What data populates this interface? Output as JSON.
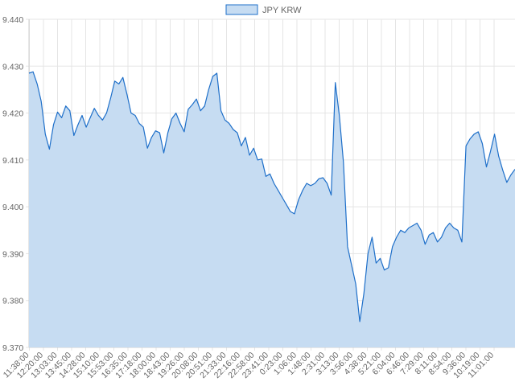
{
  "chart_data": {
    "type": "area",
    "legend": {
      "label": "JPY KRW",
      "position": "top-center"
    },
    "title": "",
    "xlabel": "",
    "ylabel": "",
    "ylim": [
      9.37,
      9.44
    ],
    "y_ticks": [
      "9.440",
      "9.430",
      "9.420",
      "9.410",
      "9.400",
      "9.390",
      "9.380",
      "9.370"
    ],
    "x_ticks": [
      "11:38:00",
      "12:20:00",
      "13:03:00",
      "13:45:00",
      "14:28:00",
      "15:10:00",
      "15:53:00",
      "16:35:00",
      "17:18:00",
      "18:00:00",
      "18:43:00",
      "19:26:00",
      "20:08:00",
      "20:51:00",
      "21:33:00",
      "22:16:00",
      "22:58:00",
      "23:41:00",
      "0:23:00",
      "1:06:00",
      "1:48:00",
      "2:31:00",
      "3:13:00",
      "3:56:00",
      "4:38:00",
      "5:21:00",
      "6:04:00",
      "6:46:00",
      "7:29:00",
      "8:11:00",
      "8:54:00",
      "9:36:00",
      "10:19:00",
      "11:01:00"
    ],
    "grid": true,
    "colors": {
      "line": "#1e6fc9",
      "fill": "#c6dcf2",
      "grid": "#e5e5e5"
    },
    "series": [
      {
        "name": "JPY KRW",
        "values": [
          9.4285,
          9.4288,
          9.4262,
          9.4225,
          9.4155,
          9.4123,
          9.4175,
          9.4202,
          9.419,
          9.4215,
          9.4205,
          9.4152,
          9.4175,
          9.4195,
          9.417,
          9.419,
          9.421,
          9.4195,
          9.4185,
          9.42,
          9.4232,
          9.4268,
          9.4262,
          9.4276,
          9.424,
          9.42,
          9.4195,
          9.4178,
          9.417,
          9.4125,
          9.4148,
          9.4162,
          9.4158,
          9.4115,
          9.4158,
          9.4188,
          9.42,
          9.4178,
          9.416,
          9.4208,
          9.4218,
          9.423,
          9.4205,
          9.4215,
          9.425,
          9.4278,
          9.4285,
          9.4205,
          9.4185,
          9.4178,
          9.4165,
          9.4158,
          9.413,
          9.4148,
          9.411,
          9.4125,
          9.41,
          9.4102,
          9.4065,
          9.407,
          9.405,
          9.4035,
          9.402,
          9.4005,
          9.399,
          9.3985,
          9.4015,
          9.4035,
          9.405,
          9.4045,
          9.405,
          9.406,
          9.4062,
          9.405,
          9.4025,
          9.4265,
          9.4195,
          9.4095,
          9.3915,
          9.3875,
          9.3835,
          9.3755,
          9.3815,
          9.39,
          9.3935,
          9.388,
          9.389,
          9.3865,
          9.387,
          9.3915,
          9.3935,
          9.395,
          9.3945,
          9.3955,
          9.396,
          9.3965,
          9.395,
          9.392,
          9.394,
          9.3945,
          9.3925,
          9.3935,
          9.3955,
          9.3965,
          9.3955,
          9.395,
          9.3925,
          9.413,
          9.4145,
          9.4155,
          9.416,
          9.4135,
          9.4085,
          9.4118,
          9.4155,
          9.4108,
          9.4078,
          9.4052,
          9.4068,
          9.408
        ]
      }
    ]
  }
}
